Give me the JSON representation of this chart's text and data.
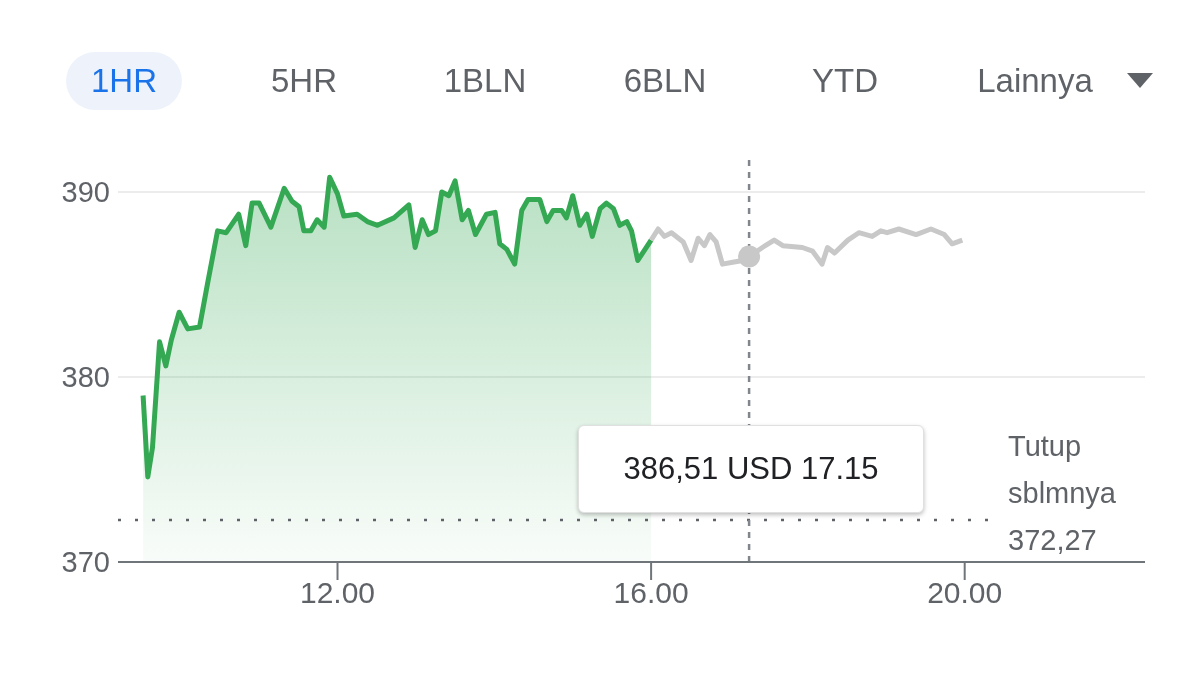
{
  "chart_data": {
    "type": "area",
    "series": [
      {
        "color": "#34a853",
        "x": [
          9.52,
          9.58,
          9.64,
          9.73,
          9.81,
          9.88,
          9.98,
          10.09,
          10.24,
          10.34,
          10.47,
          10.58,
          10.74,
          10.83,
          10.91,
          11.0,
          11.15,
          11.32,
          11.42,
          11.51,
          11.57,
          11.66,
          11.74,
          11.83,
          11.9,
          12.0,
          12.08,
          12.25,
          12.38,
          12.51,
          12.72,
          12.91,
          12.99,
          13.08,
          13.16,
          13.25,
          13.33,
          13.42,
          13.5,
          13.59,
          13.67,
          13.76,
          13.9,
          14.01,
          14.07,
          14.16,
          14.26,
          14.35,
          14.43,
          14.58,
          14.67,
          14.75,
          14.86,
          14.92,
          15.0,
          15.09,
          15.18,
          15.25,
          15.35,
          15.43,
          15.52,
          15.6,
          15.69,
          15.75,
          15.83,
          16.0
        ],
        "values": [
          379.0,
          374.6,
          376.2,
          381.9,
          380.6,
          382.0,
          383.5,
          382.6,
          382.7,
          385.0,
          387.9,
          387.8,
          388.8,
          387.1,
          389.4,
          389.4,
          388.1,
          390.2,
          389.5,
          389.2,
          387.9,
          387.9,
          388.5,
          388.1,
          390.8,
          389.9,
          388.7,
          388.8,
          388.4,
          388.2,
          388.6,
          389.3,
          387.0,
          388.5,
          387.7,
          387.9,
          390.0,
          389.8,
          390.6,
          388.5,
          389.0,
          387.7,
          388.8,
          388.9,
          387.2,
          386.9,
          386.1,
          389.0,
          389.6,
          389.6,
          388.4,
          389.0,
          389.0,
          388.6,
          389.8,
          388.2,
          388.8,
          387.6,
          389.1,
          389.4,
          389.1,
          388.2,
          388.4,
          387.9,
          386.3,
          387.4
        ]
      },
      {
        "type": "line",
        "color": "#c8c8c8",
        "x": [
          16.0,
          16.09,
          16.17,
          16.26,
          16.41,
          16.51,
          16.6,
          16.68,
          16.75,
          16.83,
          16.91,
          17.04,
          17.17,
          17.25,
          17.42,
          17.57,
          17.68,
          17.93,
          18.06,
          18.18,
          18.25,
          18.34,
          18.51,
          18.65,
          18.82,
          18.93,
          19.01,
          19.16,
          19.38,
          19.57,
          19.74,
          19.84,
          19.97
        ],
        "values": [
          387.4,
          388.0,
          387.6,
          387.8,
          387.3,
          386.3,
          387.5,
          387.1,
          387.7,
          387.3,
          386.1,
          386.2,
          386.3,
          386.51,
          387.0,
          387.4,
          387.1,
          387.0,
          386.8,
          386.1,
          387.0,
          386.7,
          387.4,
          387.8,
          387.6,
          387.9,
          387.8,
          388.0,
          387.7,
          388.0,
          387.7,
          387.2,
          387.4
        ]
      }
    ],
    "xlim": [
      9.2,
      22.3
    ],
    "xticks": [
      {
        "value": 12,
        "label": "12.00"
      },
      {
        "value": 16,
        "label": "16.00"
      },
      {
        "value": 20,
        "label": "20.00"
      }
    ],
    "ylim": [
      370,
      392
    ],
    "yticks": [
      370,
      380,
      390
    ],
    "grid": "y",
    "legend": false,
    "marker": "none",
    "ref_lines": [
      {
        "axis": "y",
        "value": 372.27,
        "label": "Tutup sblmnya 372,27",
        "line_style": "dotted",
        "color": "#5f6368"
      },
      {
        "axis": "x",
        "value": 17.25,
        "line_style": "dashed",
        "color": "#80868b"
      }
    ],
    "annotations": [
      "1HR",
      "5HR",
      "1BLN",
      "6BLN",
      "YTD",
      "Lainnya",
      "386,51 USD 17.15"
    ]
  }
}
